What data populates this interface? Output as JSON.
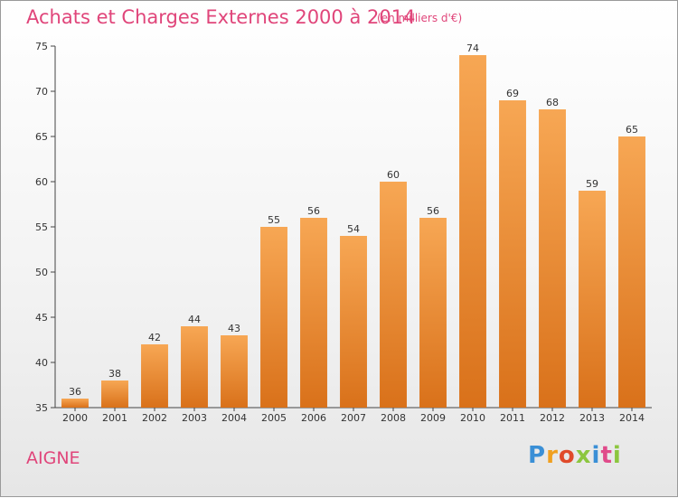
{
  "chart_data": {
    "type": "bar",
    "title": "Achats et Charges Externes 2000 à 2014",
    "subtitle": "(en milliers d'€)",
    "categories": [
      "2000",
      "2001",
      "2002",
      "2003",
      "2004",
      "2005",
      "2006",
      "2007",
      "2008",
      "2009",
      "2010",
      "2011",
      "2012",
      "2013",
      "2014"
    ],
    "values": [
      36,
      38,
      42,
      44,
      43,
      55,
      56,
      54,
      60,
      56,
      74,
      69,
      68,
      59,
      65
    ],
    "ylim": [
      35,
      75
    ],
    "yticks": [
      35,
      40,
      45,
      50,
      55,
      60,
      65,
      70,
      75
    ],
    "bar_color": "#f08c2e",
    "grid": false,
    "xlabel": "",
    "ylabel": ""
  },
  "place_name": "AIGNE",
  "logo": {
    "text": "Proxiti",
    "letter_colors": [
      "#3a8fd6",
      "#f0a020",
      "#e04a2a",
      "#8cc63f",
      "#3a8fd6",
      "#e04a8a",
      "#8cc63f"
    ]
  }
}
